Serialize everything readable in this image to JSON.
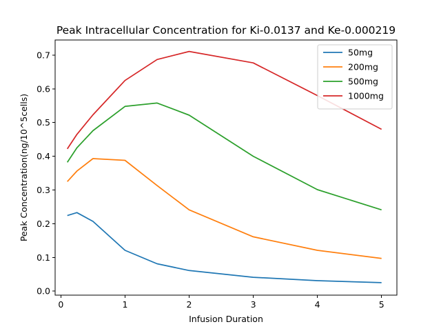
{
  "chart_data": {
    "type": "line",
    "title": "Peak Intracellular Concentration  for Ki-0.0137 and Ke-0.000219",
    "xlabel": "Infusion Duration",
    "ylabel": "Peak Concentration(ng/10^5cells)",
    "xlim": [
      -0.09,
      5.24
    ],
    "ylim": [
      -0.012,
      0.745
    ],
    "xticks": [
      0,
      1,
      2,
      3,
      4,
      5
    ],
    "xtick_labels": [
      "0",
      "1",
      "2",
      "3",
      "4",
      "5"
    ],
    "yticks": [
      0.0,
      0.1,
      0.2,
      0.3,
      0.4,
      0.5,
      0.6,
      0.7
    ],
    "ytick_labels": [
      "0.0",
      "0.1",
      "0.2",
      "0.3",
      "0.4",
      "0.5",
      "0.6",
      "0.7"
    ],
    "grid": false,
    "legend_position": "top-right",
    "series": [
      {
        "name": "50mg",
        "color": "#1f77b4",
        "x": [
          0.1,
          0.25,
          0.5,
          1,
          1.5,
          2,
          3,
          4,
          5
        ],
        "y": [
          0.224,
          0.233,
          0.207,
          0.121,
          0.081,
          0.061,
          0.041,
          0.031,
          0.025
        ]
      },
      {
        "name": "200mg",
        "color": "#ff7f0e",
        "x": [
          0.1,
          0.25,
          0.5,
          1,
          1.5,
          2,
          3,
          4,
          5
        ],
        "y": [
          0.325,
          0.356,
          0.393,
          0.388,
          0.313,
          0.241,
          0.161,
          0.121,
          0.097
        ]
      },
      {
        "name": "500mg",
        "color": "#2ca02c",
        "x": [
          0.1,
          0.25,
          0.5,
          1,
          1.5,
          2,
          3,
          4,
          5
        ],
        "y": [
          0.382,
          0.425,
          0.476,
          0.548,
          0.558,
          0.522,
          0.4,
          0.301,
          0.241
        ]
      },
      {
        "name": "1000mg",
        "color": "#d62728",
        "x": [
          0.1,
          0.25,
          0.5,
          1,
          1.5,
          2,
          3,
          4,
          5
        ],
        "y": [
          0.422,
          0.465,
          0.523,
          0.625,
          0.687,
          0.711,
          0.677,
          0.58,
          0.48
        ]
      }
    ]
  }
}
